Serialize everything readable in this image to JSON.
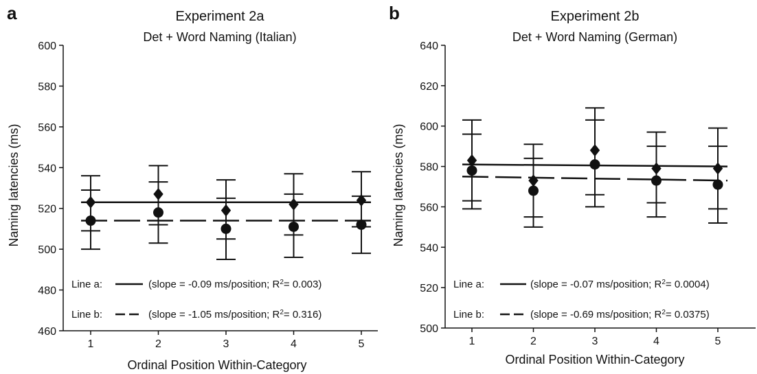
{
  "chart_data": [
    {
      "type": "scatter",
      "panel_letter": "a",
      "title": "Experiment 2a",
      "subtitle": "Det + Word Naming (Italian)",
      "xlabel": "Ordinal Position Within-Category",
      "ylabel": "Naming latencies (ms)",
      "x": [
        1,
        2,
        3,
        4,
        5
      ],
      "xticks": [
        "1",
        "2",
        "3",
        "4",
        "5"
      ],
      "ylim": [
        460,
        600
      ],
      "yticks": [
        "460",
        "480",
        "500",
        "520",
        "540",
        "560",
        "580",
        "600"
      ],
      "grid": false,
      "series": [
        {
          "marker": "diamond",
          "values": [
            523,
            527,
            519,
            522,
            524
          ],
          "err_low": [
            500,
            503,
            495,
            496,
            498
          ],
          "err_high": [
            536,
            541,
            534,
            537,
            538
          ]
        },
        {
          "marker": "circle",
          "values": [
            514,
            518,
            510,
            511,
            512
          ],
          "err_low": [
            509,
            512,
            505,
            507,
            511
          ],
          "err_high": [
            529,
            533,
            525,
            527,
            526
          ]
        }
      ],
      "lines": [
        {
          "style": "solid",
          "x": [
            1,
            5
          ],
          "y": [
            523,
            523
          ]
        },
        {
          "style": "dashed",
          "x": [
            1,
            5
          ],
          "y": [
            514,
            514
          ]
        }
      ],
      "annotations": [
        {
          "prefix": "Line a:",
          "text_pre": "(slope = -0.09 ms/position; R",
          "sup": "2",
          "text_post": "= 0.003)"
        },
        {
          "prefix": "Line b:",
          "text_pre": "(slope = -1.05 ms/position; R",
          "sup": "2",
          "text_post": "= 0.316)"
        }
      ]
    },
    {
      "type": "scatter",
      "panel_letter": "b",
      "title": "Experiment 2b",
      "subtitle": "Det + Word Naming (German)",
      "xlabel": "Ordinal Position Within-Category",
      "ylabel": "Naming latencies (ms)",
      "x": [
        1,
        2,
        3,
        4,
        5
      ],
      "xticks": [
        "1",
        "2",
        "3",
        "4",
        "5"
      ],
      "ylim": [
        500,
        640
      ],
      "yticks": [
        "500",
        "520",
        "540",
        "560",
        "580",
        "600",
        "620",
        "640"
      ],
      "grid": false,
      "series": [
        {
          "marker": "diamond",
          "values": [
            583,
            573,
            588,
            579,
            579
          ],
          "err_low": [
            563,
            555,
            566,
            562,
            559
          ],
          "err_high": [
            603,
            591,
            609,
            597,
            599
          ]
        },
        {
          "marker": "circle",
          "values": [
            578,
            568,
            581,
            573,
            571
          ],
          "err_low": [
            559,
            550,
            560,
            555,
            552
          ],
          "err_high": [
            596,
            584,
            603,
            590,
            590
          ]
        }
      ],
      "lines": [
        {
          "style": "solid",
          "x": [
            1,
            5
          ],
          "y": [
            581,
            580
          ]
        },
        {
          "style": "dashed",
          "x": [
            1,
            5
          ],
          "y": [
            575,
            573
          ]
        }
      ],
      "annotations": [
        {
          "prefix": "Line a:",
          "text_pre": "(slope = -0.07 ms/position; R",
          "sup": "2",
          "text_post": "= 0.0004)"
        },
        {
          "prefix": "Line b:",
          "text_pre": "(slope = -0.69 ms/position; R",
          "sup": "2",
          "text_post": "= 0.0375)"
        }
      ]
    }
  ]
}
